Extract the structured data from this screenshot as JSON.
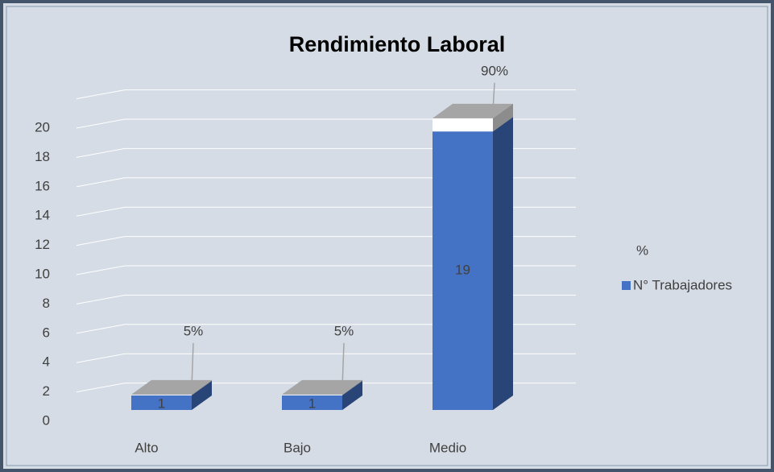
{
  "chart_data": {
    "type": "bar3d_stacked",
    "title": "Rendimiento Laboral",
    "categories": [
      "Alto",
      "Bajo",
      "Medio"
    ],
    "series": [
      {
        "name": "N° Trabajadores",
        "color": "#4472c4",
        "values": [
          1,
          1,
          19
        ]
      },
      {
        "name": "%",
        "color": "#ffffff",
        "values": [
          0.05,
          0.05,
          0.9
        ],
        "value_labels": [
          "5%",
          "5%",
          "90%"
        ]
      }
    ],
    "ylim": [
      0,
      22
    ],
    "yticks": [
      0,
      2,
      4,
      6,
      8,
      10,
      12,
      14,
      16,
      18,
      20
    ],
    "grid": true,
    "legend": "right"
  }
}
